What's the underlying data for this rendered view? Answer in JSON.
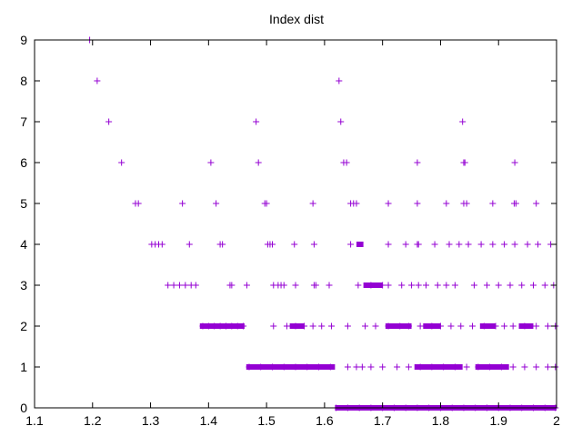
{
  "chart_data": {
    "type": "scatter",
    "title": "Index dist",
    "xlabel": "",
    "ylabel": "",
    "xlim": [
      1.1,
      2.0
    ],
    "ylim": [
      0,
      9
    ],
    "x_ticks": [
      "1.1",
      "1.2",
      "1.3",
      "1.4",
      "1.5",
      "1.6",
      "1.7",
      "1.8",
      "1.9",
      "2"
    ],
    "y_ticks": [
      "0",
      "1",
      "2",
      "3",
      "4",
      "5",
      "6",
      "7",
      "8",
      "9"
    ],
    "grid": false,
    "legend": "none",
    "marker": "plus",
    "color": "#9400d3",
    "series": [
      {
        "points": [
          [
            1.195,
            9
          ],
          [
            1.208,
            8
          ],
          [
            1.625,
            8
          ],
          [
            1.228,
            7
          ],
          [
            1.482,
            7
          ],
          [
            1.628,
            7
          ],
          [
            1.838,
            7
          ],
          [
            1.25,
            6
          ],
          [
            1.404,
            6
          ],
          [
            1.486,
            6
          ],
          [
            1.633,
            6
          ],
          [
            1.638,
            6
          ],
          [
            1.76,
            6
          ],
          [
            1.84,
            6
          ],
          [
            1.842,
            6
          ],
          [
            1.928,
            6
          ],
          [
            1.274,
            5
          ],
          [
            1.279,
            5
          ],
          [
            1.355,
            5
          ],
          [
            1.413,
            5
          ],
          [
            1.497,
            5
          ],
          [
            1.5,
            5
          ],
          [
            1.58,
            5
          ],
          [
            1.645,
            5
          ],
          [
            1.65,
            5
          ],
          [
            1.655,
            5
          ],
          [
            1.71,
            5
          ],
          [
            1.76,
            5
          ],
          [
            1.81,
            5
          ],
          [
            1.84,
            5
          ],
          [
            1.845,
            5
          ],
          [
            1.89,
            5
          ],
          [
            1.927,
            5
          ],
          [
            1.93,
            5
          ],
          [
            1.965,
            5
          ],
          [
            1.302,
            4
          ],
          [
            1.308,
            4
          ],
          [
            1.314,
            4
          ],
          [
            1.32,
            4
          ],
          [
            1.367,
            4
          ],
          [
            1.42,
            4
          ],
          [
            1.424,
            4
          ],
          [
            1.502,
            4
          ],
          [
            1.506,
            4
          ],
          [
            1.51,
            4
          ],
          [
            1.548,
            4
          ],
          [
            1.582,
            4
          ],
          [
            1.645,
            4
          ],
          [
            1.71,
            4
          ],
          [
            1.74,
            4
          ],
          [
            1.76,
            4
          ],
          [
            1.762,
            4
          ],
          [
            1.79,
            4
          ],
          [
            1.815,
            4
          ],
          [
            1.832,
            4
          ],
          [
            1.848,
            4
          ],
          [
            1.87,
            4
          ],
          [
            1.89,
            4
          ],
          [
            1.91,
            4
          ],
          [
            1.928,
            4
          ],
          [
            1.95,
            4
          ],
          [
            1.968,
            4
          ],
          [
            1.99,
            4
          ],
          [
            1.33,
            3
          ],
          [
            1.34,
            3
          ],
          [
            1.35,
            3
          ],
          [
            1.36,
            3
          ],
          [
            1.37,
            3
          ],
          [
            1.378,
            3
          ],
          [
            1.437,
            3
          ],
          [
            1.44,
            3
          ],
          [
            1.466,
            3
          ],
          [
            1.512,
            3
          ],
          [
            1.52,
            3
          ],
          [
            1.525,
            3
          ],
          [
            1.53,
            3
          ],
          [
            1.55,
            3
          ],
          [
            1.582,
            3
          ],
          [
            1.585,
            3
          ],
          [
            1.608,
            3
          ],
          [
            1.658,
            3
          ],
          [
            1.68,
            3
          ],
          [
            1.7,
            3
          ],
          [
            1.71,
            3
          ],
          [
            1.733,
            3
          ],
          [
            1.75,
            3
          ],
          [
            1.762,
            3
          ],
          [
            1.775,
            3
          ],
          [
            1.795,
            3
          ],
          [
            1.81,
            3
          ],
          [
            1.825,
            3
          ],
          [
            1.858,
            3
          ],
          [
            1.88,
            3
          ],
          [
            1.9,
            3
          ],
          [
            1.92,
            3
          ],
          [
            1.94,
            3
          ],
          [
            1.96,
            3
          ],
          [
            1.98,
            3
          ],
          [
            1.995,
            3
          ],
          [
            1.39,
            2
          ],
          [
            1.4,
            2
          ],
          [
            1.41,
            2
          ],
          [
            1.42,
            2
          ],
          [
            1.43,
            2
          ],
          [
            1.44,
            2
          ],
          [
            1.45,
            2
          ],
          [
            1.46,
            2
          ],
          [
            1.512,
            2
          ],
          [
            1.535,
            2
          ],
          [
            1.55,
            2
          ],
          [
            1.565,
            2
          ],
          [
            1.58,
            2
          ],
          [
            1.595,
            2
          ],
          [
            1.612,
            2
          ],
          [
            1.64,
            2
          ],
          [
            1.67,
            2
          ],
          [
            1.688,
            2
          ],
          [
            1.71,
            2
          ],
          [
            1.73,
            2
          ],
          [
            1.745,
            2
          ],
          [
            1.765,
            2
          ],
          [
            1.785,
            2
          ],
          [
            1.8,
            2
          ],
          [
            1.818,
            2
          ],
          [
            1.835,
            2
          ],
          [
            1.855,
            2
          ],
          [
            1.875,
            2
          ],
          [
            1.895,
            2
          ],
          [
            1.91,
            2
          ],
          [
            1.925,
            2
          ],
          [
            1.945,
            2
          ],
          [
            1.965,
            2
          ],
          [
            1.985,
            2
          ],
          [
            1.998,
            2
          ],
          [
            1.47,
            1
          ],
          [
            1.49,
            1
          ],
          [
            1.51,
            1
          ],
          [
            1.53,
            1
          ],
          [
            1.55,
            1
          ],
          [
            1.57,
            1
          ],
          [
            1.59,
            1
          ],
          [
            1.61,
            1
          ],
          [
            1.64,
            1
          ],
          [
            1.655,
            1
          ],
          [
            1.665,
            1
          ],
          [
            1.68,
            1
          ],
          [
            1.7,
            1
          ],
          [
            1.725,
            1
          ],
          [
            1.745,
            1
          ],
          [
            1.765,
            1
          ],
          [
            1.785,
            1
          ],
          [
            1.805,
            1
          ],
          [
            1.825,
            1
          ],
          [
            1.845,
            1
          ],
          [
            1.865,
            1
          ],
          [
            1.885,
            1
          ],
          [
            1.905,
            1
          ],
          [
            1.925,
            1
          ],
          [
            1.945,
            1
          ],
          [
            1.965,
            1
          ],
          [
            1.985,
            1
          ],
          [
            1.998,
            1
          ],
          [
            1.62,
            0
          ],
          [
            1.64,
            0
          ],
          [
            1.66,
            0
          ],
          [
            1.68,
            0
          ],
          [
            1.7,
            0
          ],
          [
            1.72,
            0
          ],
          [
            1.74,
            0
          ],
          [
            1.76,
            0
          ],
          [
            1.78,
            0
          ],
          [
            1.8,
            0
          ],
          [
            1.82,
            0
          ],
          [
            1.84,
            0
          ],
          [
            1.86,
            0
          ],
          [
            1.88,
            0
          ],
          [
            1.9,
            0
          ],
          [
            1.92,
            0
          ],
          [
            1.94,
            0
          ],
          [
            1.96,
            0
          ],
          [
            1.98,
            0
          ],
          [
            1.998,
            0
          ]
        ],
        "bands": [
          {
            "y": 2,
            "from": 1.385,
            "to": 1.462
          },
          {
            "y": 2,
            "from": 1.54,
            "to": 1.565
          },
          {
            "y": 2,
            "from": 1.705,
            "to": 1.75
          },
          {
            "y": 2,
            "from": 1.77,
            "to": 1.8
          },
          {
            "y": 2,
            "from": 1.868,
            "to": 1.895
          },
          {
            "y": 2,
            "from": 1.935,
            "to": 1.96
          },
          {
            "y": 1,
            "from": 1.465,
            "to": 1.618
          },
          {
            "y": 1,
            "from": 1.755,
            "to": 1.838
          },
          {
            "y": 1,
            "from": 1.86,
            "to": 1.918
          },
          {
            "y": 0,
            "from": 1.618,
            "to": 2.0
          },
          {
            "y": 3,
            "from": 1.667,
            "to": 1.7
          },
          {
            "y": 4,
            "from": 1.655,
            "to": 1.667
          }
        ]
      }
    ]
  }
}
